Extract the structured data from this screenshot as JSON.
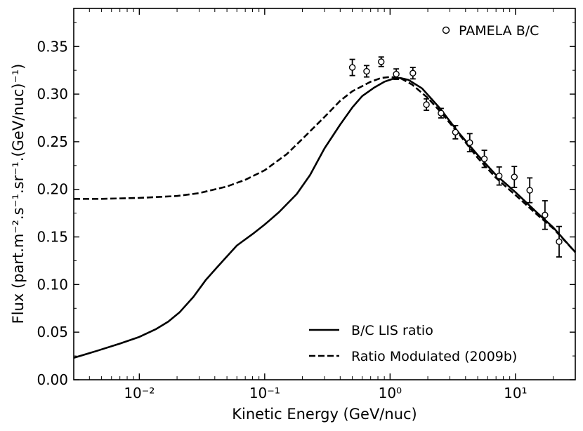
{
  "chart_data": {
    "type": "line",
    "xscale": "log",
    "xlim": [
      0.003,
      30
    ],
    "ylim": [
      0.0,
      0.39
    ],
    "xlabel": "Kinetic Energy (GeV/nuc)",
    "ylabel": "Flux (part.m⁻².s⁻¹.sr⁻¹.(GeV/nuc)⁻¹)",
    "x_tick_labels": [
      {
        "value": 0.01,
        "label": "10⁻²"
      },
      {
        "value": 0.1,
        "label": "10⁻¹"
      },
      {
        "value": 1,
        "label": "10⁰"
      },
      {
        "value": 10,
        "label": "10¹"
      }
    ],
    "y_ticks": [
      0.0,
      0.05,
      0.1,
      0.15,
      0.2,
      0.25,
      0.3,
      0.35
    ],
    "y_tick_labels": [
      "0.00",
      "0.05",
      "0.10",
      "0.15",
      "0.20",
      "0.25",
      "0.30",
      "0.35"
    ],
    "legend_upper": {
      "position": "top-right",
      "label": "PAMELA B/C"
    },
    "legend_lower": {
      "position": "bottom-right"
    },
    "series": [
      {
        "name": "B/C LIS ratio",
        "style": "solid",
        "x": [
          0.003,
          0.0045,
          0.007,
          0.01,
          0.0135,
          0.017,
          0.021,
          0.027,
          0.034,
          0.041,
          0.048,
          0.06,
          0.08,
          0.1,
          0.13,
          0.18,
          0.23,
          0.3,
          0.4,
          0.5,
          0.6,
          0.75,
          0.9,
          1.05,
          1.2,
          1.4,
          1.8,
          2.5,
          3.5,
          5,
          7,
          10,
          15,
          20,
          30
        ],
        "y": [
          0.023,
          0.03,
          0.038,
          0.045,
          0.053,
          0.061,
          0.071,
          0.087,
          0.105,
          0.117,
          0.127,
          0.141,
          0.153,
          0.163,
          0.176,
          0.195,
          0.215,
          0.243,
          0.268,
          0.286,
          0.298,
          0.307,
          0.313,
          0.316,
          0.317,
          0.315,
          0.306,
          0.285,
          0.26,
          0.236,
          0.215,
          0.197,
          0.175,
          0.16,
          0.134
        ]
      },
      {
        "name": "Ratio Modulated (2009b)",
        "style": "dashed",
        "x": [
          0.003,
          0.005,
          0.01,
          0.02,
          0.03,
          0.05,
          0.07,
          0.1,
          0.15,
          0.2,
          0.3,
          0.4,
          0.5,
          0.7,
          0.85,
          1.0,
          1.2,
          1.5,
          2.0,
          2.5,
          3.5,
          5,
          7,
          10,
          15,
          20,
          30
        ],
        "y": [
          0.19,
          0.19,
          0.191,
          0.193,
          0.196,
          0.203,
          0.21,
          0.22,
          0.237,
          0.253,
          0.276,
          0.293,
          0.303,
          0.313,
          0.317,
          0.318,
          0.317,
          0.31,
          0.296,
          0.282,
          0.259,
          0.233,
          0.212,
          0.194,
          0.173,
          0.159,
          0.134
        ]
      }
    ],
    "points": {
      "name": "PAMELA B/C",
      "x": [
        0.5,
        0.65,
        0.85,
        1.12,
        1.52,
        1.95,
        2.55,
        3.32,
        4.32,
        5.65,
        7.42,
        9.8,
        13.0,
        17.2,
        22.3
      ],
      "y": [
        0.328,
        0.324,
        0.334,
        0.321,
        0.322,
        0.289,
        0.28,
        0.26,
        0.249,
        0.232,
        0.214,
        0.213,
        0.199,
        0.173,
        0.145
      ],
      "yerr": [
        0.0085,
        0.006,
        0.005,
        0.0055,
        0.006,
        0.006,
        0.005,
        0.007,
        0.0095,
        0.009,
        0.0095,
        0.011,
        0.013,
        0.015,
        0.016
      ]
    }
  }
}
